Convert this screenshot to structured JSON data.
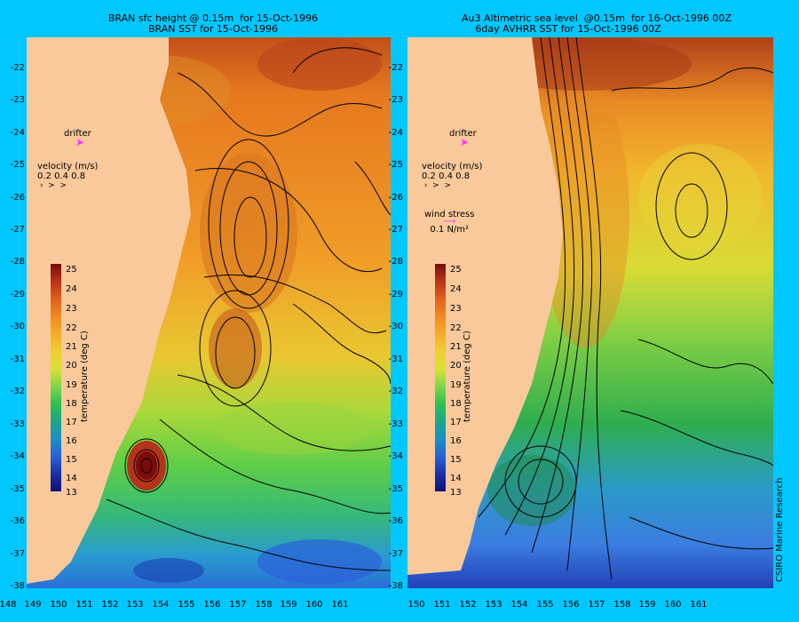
{
  "left_panel": {
    "title_line1": "BRAN sfc height @ 0.15m  for 15-Oct-1996",
    "title_line2": "BRAN SST for 15-Oct-1996",
    "drifter_label": "drifter",
    "velocity_label": "velocity (m/s)",
    "velocity_scale": "0.2 0.4 0.8"
  },
  "right_panel": {
    "title_line1": "Au3 Altimetric sea level  @0.15m  for 16-Oct-1996 00Z",
    "title_line2": "6day AVHRR SST for 15-Oct-1996 00Z",
    "drifter_label": "drifter",
    "velocity_label": "velocity (m/s)",
    "velocity_scale": "0.2 0.4 0.8",
    "wind_label": "wind stress",
    "wind_scale": "0.1 N/m²"
  },
  "axes": {
    "lat_ticks": [
      "-22",
      "-23",
      "-24",
      "-25",
      "-26",
      "-27",
      "-28",
      "-29",
      "-30",
      "-31",
      "-32",
      "-33",
      "-34",
      "-35",
      "-36",
      "-37",
      "-38"
    ],
    "lon_ticks": [
      "148",
      "149",
      "150",
      "151",
      "152",
      "153",
      "154",
      "155",
      "156",
      "157",
      "158",
      "159",
      "160",
      "161"
    ]
  },
  "colorbar": {
    "label": "temperature (deg C)",
    "ticks": [
      "25",
      "24",
      "23",
      "22",
      "21",
      "20",
      "19",
      "18",
      "17",
      "16",
      "15",
      "14",
      "13"
    ],
    "range": [
      13,
      25
    ],
    "colors": [
      "#7a0b0b",
      "#f08a22",
      "#f0cf30",
      "#2cc153",
      "#1a8fc7",
      "#0e107a"
    ]
  },
  "credit": "CSIRO Marine Research",
  "colors": {
    "background": "#00c8ff",
    "land": "#f9c99b",
    "drifter": "#ff33ff"
  },
  "icons": [
    "drifter-arrow-icon",
    "velocity-arrow-icon",
    "wind-stress-arrow-icon"
  ]
}
